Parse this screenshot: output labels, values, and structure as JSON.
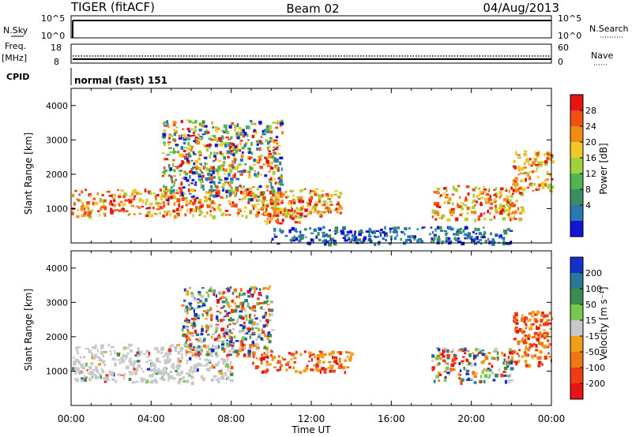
{
  "header": {
    "station": "TIGER (fitACF)",
    "beam": "Beam 02",
    "date": "04/Aug/2013"
  },
  "status_panels": {
    "nsky": {
      "label": "N.Sky",
      "ticks": [
        "10^5",
        "10^0"
      ]
    },
    "nsearch": {
      "label": "N.Search",
      "ticks": [
        "10^5",
        "10^0"
      ]
    },
    "freq": {
      "label_top": "Freq.",
      "label_unit": "[MHz]",
      "ticks": [
        "18",
        "8"
      ]
    },
    "nave": {
      "label": "Nave",
      "ticks": [
        "60",
        "0"
      ]
    },
    "cpid": {
      "label": "CPID",
      "text": "normal (fast) 151"
    }
  },
  "chart_data": [
    {
      "type": "heatmap",
      "quantity": "Power",
      "ylabel": "Slant Range [km]",
      "xlabel": "Time UT",
      "ylim": [
        0,
        4500
      ],
      "xlim": [
        0,
        24
      ],
      "y_ticks": [
        1000,
        2000,
        3000,
        4000
      ],
      "x_ticks": [
        "00:00",
        "04:00",
        "08:00",
        "12:00",
        "16:00",
        "20:00",
        "00:00"
      ],
      "colorbar": {
        "label": "Power [dB]",
        "ticks": [
          "28",
          "24",
          "20",
          "16",
          "12",
          "8",
          "4"
        ],
        "colors": [
          "#1414d2",
          "#2878b4",
          "#3c8c64",
          "#50b450",
          "#a0d23c",
          "#f0c828",
          "#f08c14",
          "#f05014",
          "#e61414"
        ]
      },
      "regions": [
        {
          "t0": 0.0,
          "t1": 13.5,
          "r0": 800,
          "r1": 1600,
          "level": "high"
        },
        {
          "t0": 4.5,
          "t1": 10.5,
          "r0": 1300,
          "r1": 3600,
          "level": "mixed"
        },
        {
          "t0": 9.5,
          "t1": 11.5,
          "r0": 600,
          "r1": 1300,
          "level": "high"
        },
        {
          "t0": 18.0,
          "t1": 22.5,
          "r0": 700,
          "r1": 1700,
          "level": "high"
        },
        {
          "t0": 22.0,
          "t1": 24.0,
          "r0": 1500,
          "r1": 2700,
          "level": "high"
        },
        {
          "t0": 10.0,
          "t1": 22.0,
          "r0": 0,
          "r1": 500,
          "level": "low"
        }
      ]
    },
    {
      "type": "heatmap",
      "quantity": "Velocity",
      "ylabel": "Slant Range [km]",
      "xlabel": "Time UT",
      "ylim": [
        0,
        4500
      ],
      "xlim": [
        0,
        24
      ],
      "y_ticks": [
        1000,
        2000,
        3000,
        4000
      ],
      "x_ticks": [
        "00:00",
        "04:00",
        "08:00",
        "12:00",
        "16:00",
        "20:00",
        "00:00"
      ],
      "colorbar": {
        "label": "Velocity [m s⁻¹]",
        "ticks": [
          "200",
          "100",
          "50",
          "15",
          "-15",
          "-50",
          "-100",
          "-200"
        ],
        "colors": [
          "#1432c8",
          "#287896",
          "#3c8c50",
          "#78c850",
          "#c8c8c8",
          "#f0a014",
          "#f07814",
          "#f03c14",
          "#e61414"
        ]
      },
      "regions": [
        {
          "t0": 0.0,
          "t1": 8.0,
          "r0": 700,
          "r1": 1800,
          "level": "near-zero"
        },
        {
          "t0": 5.5,
          "t1": 10.0,
          "r0": 1500,
          "r1": 3500,
          "level": "mixed"
        },
        {
          "t0": 9.0,
          "t1": 14.0,
          "r0": 1000,
          "r1": 1600,
          "level": "negative"
        },
        {
          "t0": 18.0,
          "t1": 22.0,
          "r0": 700,
          "r1": 1700,
          "level": "mixed"
        },
        {
          "t0": 22.0,
          "t1": 24.0,
          "r0": 1200,
          "r1": 2800,
          "level": "negative"
        }
      ]
    }
  ]
}
